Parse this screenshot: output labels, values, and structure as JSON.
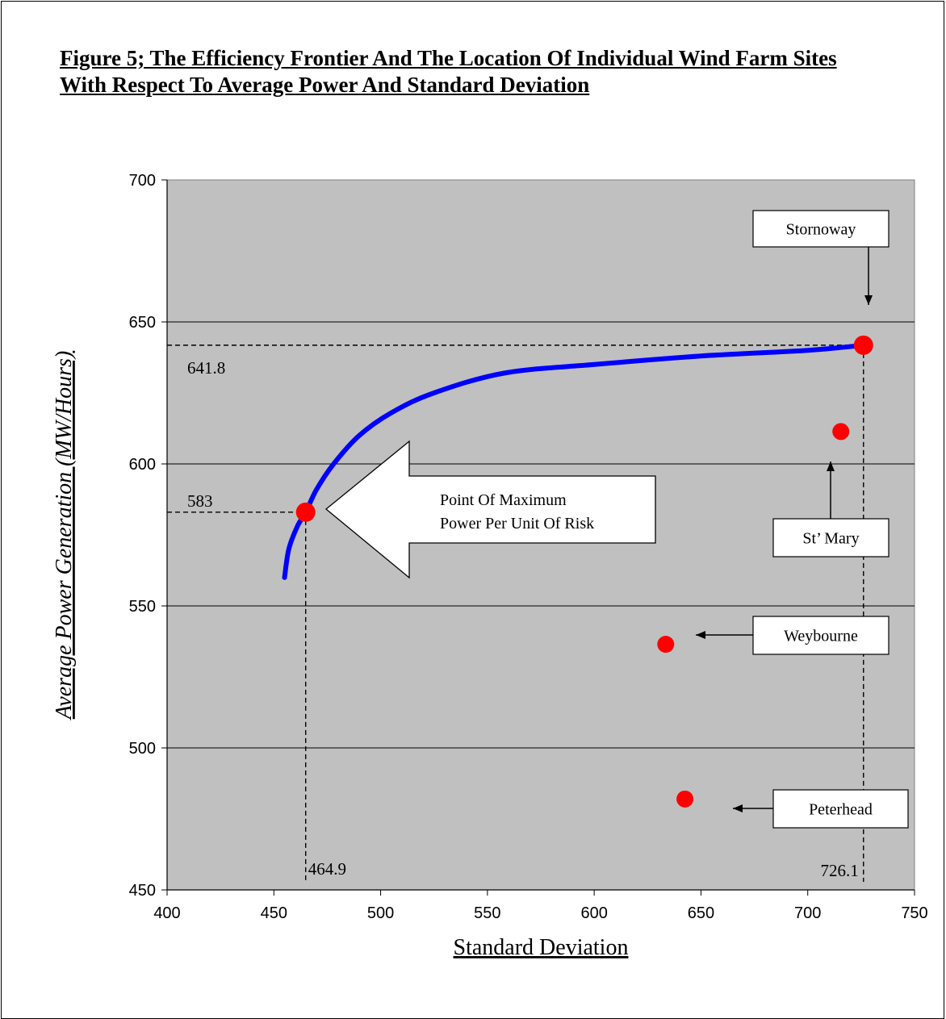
{
  "title": "Figure 5; The Efficiency Frontier And The Location Of Individual Wind Farm Sites With Respect To Average Power And Standard Deviation",
  "chart_data": {
    "type": "scatter",
    "xlabel": "Standard Deviation",
    "ylabel": "Average Power Generation (MW/Hours)",
    "xlim": [
      400,
      750
    ],
    "ylim": [
      450,
      700
    ],
    "x_ticks": [
      "400",
      "450",
      "500",
      "550",
      "600",
      "650",
      "700",
      "750"
    ],
    "y_ticks": [
      "450",
      "500",
      "550",
      "600",
      "650",
      "700"
    ],
    "grid": "horizontal",
    "colors": {
      "plot_bg": "#c0c0c0",
      "frontier": "#0000ff",
      "points": "#ff0000"
    },
    "frontier": {
      "x": [
        455,
        457,
        461,
        464.9,
        470,
        478,
        490,
        505,
        525,
        558,
        600,
        650,
        700,
        726.1
      ],
      "y": [
        560,
        570,
        578,
        583,
        591,
        600,
        610,
        618,
        625,
        632,
        635,
        638,
        640,
        641.8
      ]
    },
    "sites": [
      {
        "name": "Stornoway",
        "x": 726.1,
        "y": 641.8
      },
      {
        "name": "St’ Mary",
        "x": 715.5,
        "y": 611.4
      },
      {
        "name": "Weybourne",
        "x": 633.5,
        "y": 536.5
      },
      {
        "name": "Peterhead",
        "x": 642.5,
        "y": 482
      },
      {
        "name": "",
        "x": 464.9,
        "y": 583
      }
    ],
    "reference_labels": {
      "stornoway_y": "641.8",
      "optimum_y": "583",
      "optimum_x": "464.9",
      "stornoway_x": "726.1"
    },
    "callout": "Point Of Maximum Power Per Unit Of Risk"
  }
}
